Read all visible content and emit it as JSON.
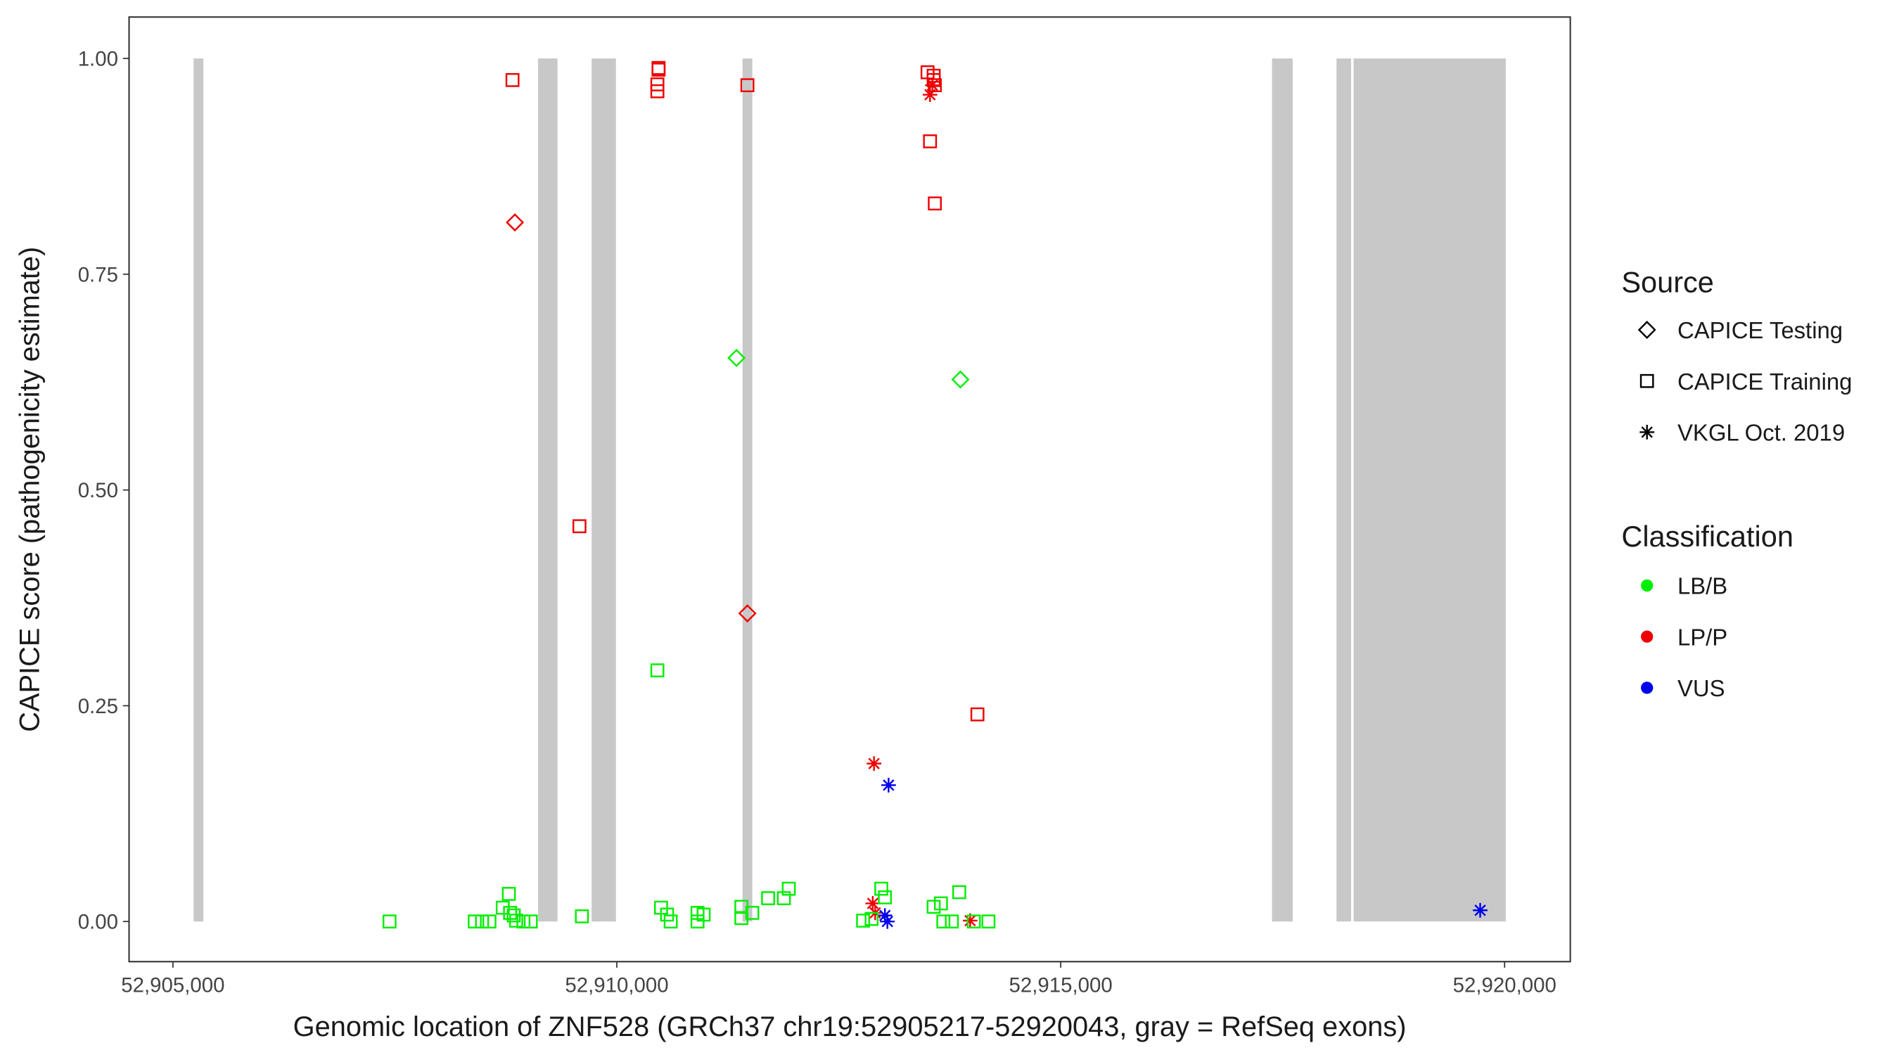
{
  "chart_data": {
    "type": "scatter",
    "x_label": "Genomic location of ZNF528 (GRCh37 chr19:52905217-52920043, gray = RefSeq exons)",
    "y_label": "CAPICE score (pathogenicity estimate)",
    "xlim": [
      52904506,
      52920740
    ],
    "ylim": [
      -0.0465,
      1.048
    ],
    "xticks": [
      {
        "value": 52905000,
        "label": "52,905,000"
      },
      {
        "value": 52910000,
        "label": "52,910,000"
      },
      {
        "value": 52915000,
        "label": "52,915,000"
      },
      {
        "value": 52920000,
        "label": "52,920,000"
      }
    ],
    "yticks": [
      {
        "value": 0,
        "label": "0.00"
      },
      {
        "value": 0.25,
        "label": "0.25"
      },
      {
        "value": 0.5,
        "label": "0.50"
      },
      {
        "value": 0.75,
        "label": "0.75"
      },
      {
        "value": 1,
        "label": "1.00"
      }
    ],
    "grid": false,
    "exon_color": "#c8c8c8",
    "exons": [
      [
        52905233,
        52905343
      ],
      [
        52909113,
        52909332
      ],
      [
        52909716,
        52909990
      ],
      [
        52911416,
        52911526
      ],
      [
        52917380,
        52917613
      ],
      [
        52918107,
        52918271
      ],
      [
        52918299,
        52920013
      ]
    ],
    "legend": {
      "source_title": "Source",
      "sources": [
        {
          "name": "CAPICE Testing",
          "shape": "diamond"
        },
        {
          "name": "CAPICE Training",
          "shape": "square"
        },
        {
          "name": "VKGL Oct. 2019",
          "shape": "asterisk"
        }
      ],
      "classification_title": "Classification",
      "classifications": [
        {
          "name": "LB/B",
          "color": "#00ee00"
        },
        {
          "name": "LP/P",
          "color": "#ee0000"
        },
        {
          "name": "VUS",
          "color": "#0000ee"
        }
      ]
    },
    "series": [
      {
        "source": "CAPICE Training",
        "classification": "LP/P",
        "x": [
          52908825,
          52910470,
          52910470,
          52910457,
          52910457,
          52911471,
          52913500,
          52913569,
          52913569,
          52913582,
          52913528,
          52913582,
          52909579,
          52914062
        ],
        "y": [
          0.975,
          0.989,
          0.987,
          0.97,
          0.962,
          0.969,
          0.984,
          0.98,
          0.975,
          0.969,
          0.904,
          0.832,
          0.458,
          0.24
        ]
      },
      {
        "source": "CAPICE Testing",
        "classification": "LP/P",
        "x": [
          52908852,
          52911471
        ],
        "y": [
          0.81,
          0.357
        ]
      },
      {
        "source": "CAPICE Testing",
        "classification": "LB/B",
        "x": [
          52911348,
          52913870
        ],
        "y": [
          0.653,
          0.628
        ]
      },
      {
        "source": "VKGL Oct. 2019",
        "classification": "LP/P",
        "x": [
          52912897,
          52912883,
          52912910,
          52913980,
          52913528,
          52913555
        ],
        "y": [
          0.183,
          0.021,
          0.01,
          0.001,
          0.958,
          0.969
        ]
      },
      {
        "source": "VKGL Oct. 2019",
        "classification": "VUS",
        "x": [
          52913061,
          52913020,
          52913048,
          52919725
        ],
        "y": [
          0.158,
          0.007,
          0.0,
          0.013
        ]
      },
      {
        "source": "CAPICE Training",
        "classification": "LB/B",
        "x": [
          52907440,
          52908400,
          52908482,
          52908565,
          52908715,
          52908784,
          52908798,
          52908839,
          52908866,
          52908948,
          52909031,
          52909607,
          52910498,
          52910566,
          52910607,
          52910909,
          52910909,
          52910978,
          52911403,
          52911403,
          52911526,
          52911704,
          52911882,
          52911937,
          52912774,
          52912870,
          52912979,
          52913020,
          52913569,
          52913651,
          52913678,
          52913774,
          52913857,
          52914021,
          52914186,
          52910457
        ],
        "y": [
          0,
          0,
          0,
          0,
          0.016,
          0.032,
          0.01,
          0.007,
          0.001,
          0,
          0,
          0.006,
          0.016,
          0.008,
          0,
          0,
          0.01,
          0.008,
          0.004,
          0.017,
          0.01,
          0.027,
          0.027,
          0.038,
          0.001,
          0.003,
          0.038,
          0.028,
          0.017,
          0.021,
          0,
          0,
          0.034,
          0,
          0,
          0.291
        ]
      }
    ]
  }
}
